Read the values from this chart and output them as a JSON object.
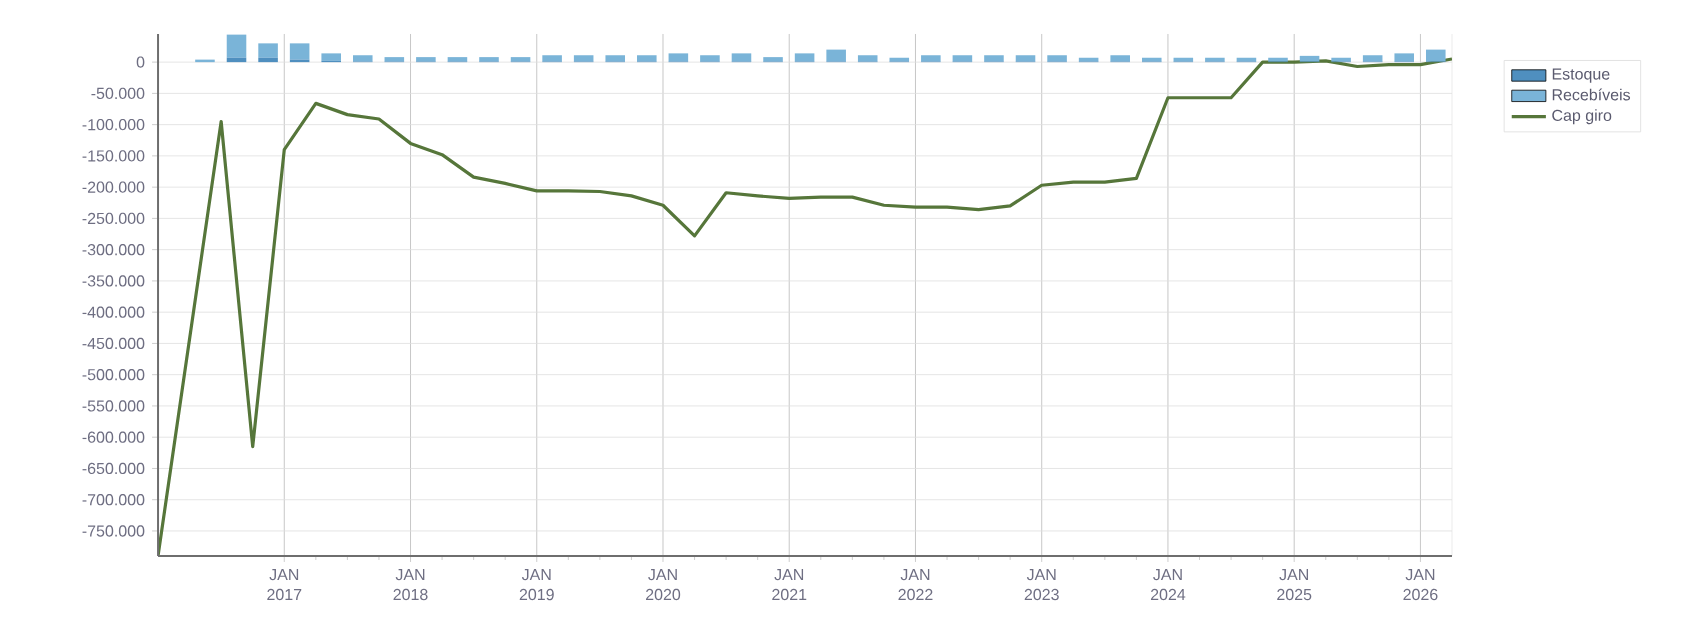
{
  "chart_data": {
    "type": "bar",
    "stacked": true,
    "grid": true,
    "legend": "right",
    "xlim": [
      "2016-01",
      "2026-04"
    ],
    "ylim": [
      -790000,
      45000
    ],
    "xticks": [
      {
        "value": "2017-01",
        "label": "JAN 2017"
      },
      {
        "value": "2018-01",
        "label": "JAN 2018"
      },
      {
        "value": "2019-01",
        "label": "JAN 2019"
      },
      {
        "value": "2020-01",
        "label": "JAN 2020"
      },
      {
        "value": "2021-01",
        "label": "JAN 2021"
      },
      {
        "value": "2022-01",
        "label": "JAN 2022"
      },
      {
        "value": "2023-01",
        "label": "JAN 2023"
      },
      {
        "value": "2024-01",
        "label": "JAN 2024"
      },
      {
        "value": "2025-01",
        "label": "JAN 2025"
      },
      {
        "value": "2026-01",
        "label": "JAN 2026"
      }
    ],
    "yticks": [
      {
        "value": -750000,
        "label": "-750.000"
      },
      {
        "value": -700000,
        "label": "-700.000"
      },
      {
        "value": -650000,
        "label": "-650.000"
      },
      {
        "value": -600000,
        "label": "-600.000"
      },
      {
        "value": -550000,
        "label": "-550.000"
      },
      {
        "value": -500000,
        "label": "-500.000"
      },
      {
        "value": -450000,
        "label": "-450.000"
      },
      {
        "value": -400000,
        "label": "-400.000"
      },
      {
        "value": -350000,
        "label": "-350.000"
      },
      {
        "value": -300000,
        "label": "-300.000"
      },
      {
        "value": -250000,
        "label": "-250.000"
      },
      {
        "value": -200000,
        "label": "-200.000"
      },
      {
        "value": -150000,
        "label": "-150.000"
      },
      {
        "value": -100000,
        "label": "-100.000"
      },
      {
        "value": -50000,
        "label": "-50.000"
      },
      {
        "value": 0,
        "label": "0"
      }
    ],
    "series": [
      {
        "name": "Estoque",
        "color": "#4f8fbf",
        "x": [
          "2016-05-15",
          "2016-08-15",
          "2016-11-15",
          "2017-02-15",
          "2017-05-15",
          "2017-08-15",
          "2017-11-15",
          "2018-02-15",
          "2018-05-15",
          "2018-08-15",
          "2018-11-15",
          "2019-02-15",
          "2019-05-15",
          "2019-08-15",
          "2019-11-15",
          "2020-02-15",
          "2020-05-15",
          "2020-08-15",
          "2020-11-15",
          "2021-02-15",
          "2021-05-15",
          "2021-08-15",
          "2021-11-15",
          "2022-02-15",
          "2022-05-15",
          "2022-08-15",
          "2022-11-15",
          "2023-02-15",
          "2023-05-15",
          "2023-08-15",
          "2023-11-15",
          "2024-02-15",
          "2024-05-15",
          "2024-08-15",
          "2024-11-15",
          "2025-02-15",
          "2025-05-15",
          "2025-08-15",
          "2025-11-15",
          "2026-02-15"
        ],
        "values": [
          0,
          7000,
          7000,
          4000,
          2000,
          1000,
          1000,
          1000,
          1000,
          1000,
          1000,
          1000,
          1000,
          1000,
          1000,
          1000,
          1000,
          1000,
          1000,
          1000,
          1000,
          1000,
          1000,
          1000,
          1000,
          1000,
          1000,
          1000,
          1000,
          1000,
          1000,
          1000,
          1000,
          1000,
          1000,
          1000,
          1000,
          1000,
          1000,
          1000
        ]
      },
      {
        "name": "Recebíveis",
        "color": "#7ab4d8",
        "x": [
          "2016-05-15",
          "2016-08-15",
          "2016-11-15",
          "2017-02-15",
          "2017-05-15",
          "2017-08-15",
          "2017-11-15",
          "2018-02-15",
          "2018-05-15",
          "2018-08-15",
          "2018-11-15",
          "2019-02-15",
          "2019-05-15",
          "2019-08-15",
          "2019-11-15",
          "2020-02-15",
          "2020-05-15",
          "2020-08-15",
          "2020-11-15",
          "2021-02-15",
          "2021-05-15",
          "2021-08-15",
          "2021-11-15",
          "2022-02-15",
          "2022-05-15",
          "2022-08-15",
          "2022-11-15",
          "2023-02-15",
          "2023-05-15",
          "2023-08-15",
          "2023-11-15",
          "2024-02-15",
          "2024-05-15",
          "2024-08-15",
          "2024-11-15",
          "2025-02-15",
          "2025-05-15",
          "2025-08-15",
          "2025-11-15",
          "2026-02-15"
        ],
        "values": [
          4000,
          37000,
          23000,
          26000,
          12000,
          10000,
          7000,
          7000,
          7000,
          7000,
          7000,
          10000,
          10000,
          10000,
          10000,
          13000,
          10000,
          13000,
          7000,
          13000,
          19000,
          10000,
          6000,
          10000,
          10000,
          10000,
          10000,
          10000,
          6000,
          10000,
          6000,
          6000,
          6000,
          6000,
          6000,
          9000,
          6000,
          10000,
          13000,
          19000
        ]
      },
      {
        "name": "Cap giro",
        "type": "line",
        "color": "#56763a",
        "x": [
          "2016-01",
          "2016-07",
          "2016-10",
          "2017-01",
          "2017-04",
          "2017-07",
          "2017-10",
          "2018-01",
          "2018-04",
          "2018-07",
          "2018-10",
          "2019-01",
          "2019-04",
          "2019-07",
          "2019-10",
          "2020-01",
          "2020-04",
          "2020-07",
          "2020-10",
          "2021-01",
          "2021-04",
          "2021-07",
          "2021-10",
          "2022-01",
          "2022-04",
          "2022-07",
          "2022-10",
          "2023-01",
          "2023-04",
          "2023-07",
          "2023-10",
          "2024-01",
          "2024-04",
          "2024-07",
          "2024-10",
          "2025-01",
          "2025-04",
          "2025-07",
          "2025-10",
          "2026-01",
          "2026-04"
        ],
        "values": [
          -790000,
          -95000,
          -615000,
          -140000,
          -66000,
          -84000,
          -91000,
          -130000,
          -148000,
          -184000,
          -194000,
          -206000,
          -206000,
          -207000,
          -214000,
          -229000,
          -278000,
          -209000,
          -214000,
          -218000,
          -216000,
          -216000,
          -229000,
          -232000,
          -232000,
          -236000,
          -230000,
          -197000,
          -192000,
          -192000,
          -186000,
          -57000,
          -57000,
          -57000,
          0,
          0,
          2000,
          -7000,
          -4000,
          -4000,
          5000
        ]
      }
    ]
  }
}
